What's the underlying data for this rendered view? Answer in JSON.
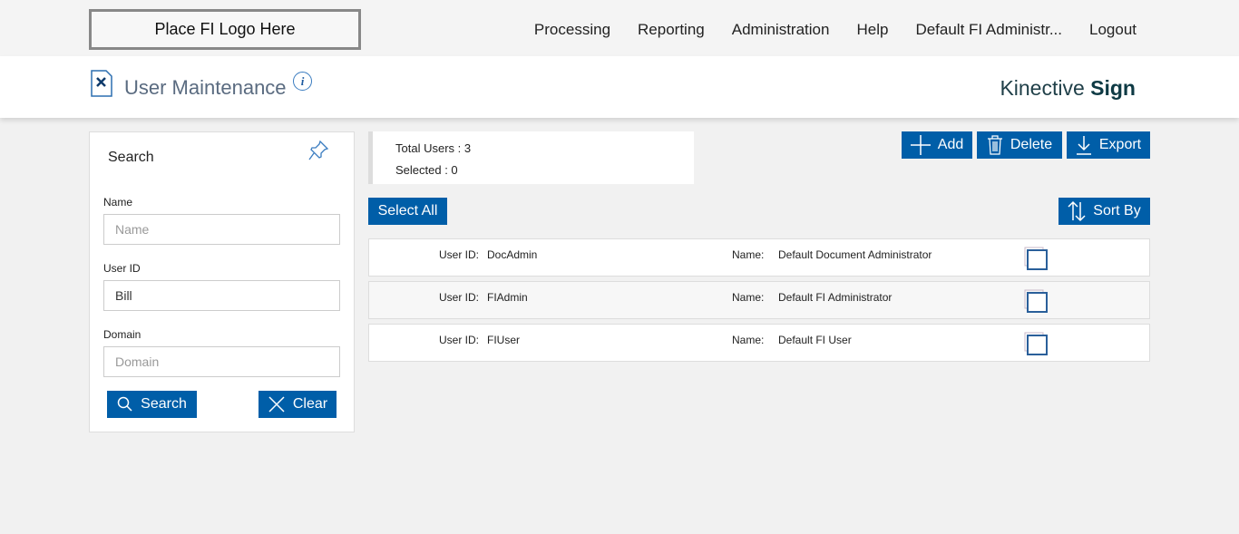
{
  "logo": "Place FI Logo Here",
  "nav": [
    "Processing",
    "Reporting",
    "Administration",
    "Help",
    "Default FI Administr...",
    "Logout"
  ],
  "page_title": "User Maintenance",
  "brand": {
    "light": "Kinective ",
    "bold": "Sign"
  },
  "search": {
    "title": "Search",
    "name_label": "Name",
    "name_placeholder": "Name",
    "name_value": "",
    "userid_label": "User ID",
    "userid_value": "Bill",
    "domain_label": "Domain",
    "domain_placeholder": "Domain",
    "search_btn": "Search",
    "clear_btn": "Clear"
  },
  "summary": {
    "total": "Total Users : 3",
    "selected": "Selected : 0"
  },
  "actions": {
    "add": "Add",
    "delete": "Delete",
    "export": "Export",
    "select_all": "Select All",
    "sort_by": "Sort By"
  },
  "users": [
    {
      "id_label": "User ID:",
      "id": "DocAdmin",
      "name_label": "Name:",
      "name": "Default Document Administrator"
    },
    {
      "id_label": "User ID:",
      "id": "FIAdmin",
      "name_label": "Name:",
      "name": "Default FI Administrator"
    },
    {
      "id_label": "User ID:",
      "id": "FIUser",
      "name_label": "Name:",
      "name": "Default FI User"
    }
  ],
  "colors": {
    "accent": "#005ea8"
  }
}
